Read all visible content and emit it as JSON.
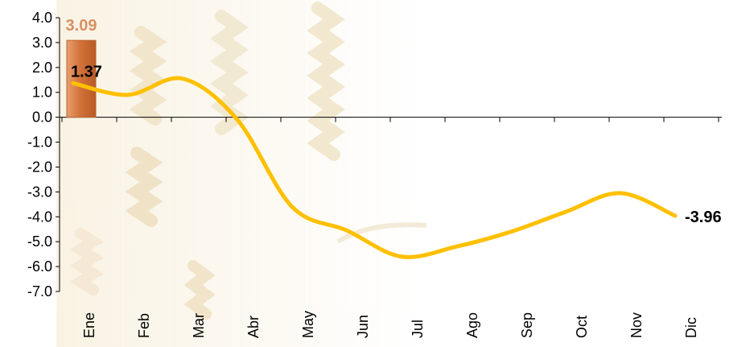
{
  "chart_data": {
    "type": "line",
    "categories": [
      "Ene",
      "Feb",
      "Mar",
      "Abr",
      "May",
      "Jun",
      "Jul",
      "Ago",
      "Sep",
      "Oct",
      "Nov",
      "Dic"
    ],
    "ylim": [
      -7.0,
      4.0
    ],
    "y_ticks": [
      "4.0",
      "3.0",
      "2.0",
      "1.0",
      "0.0",
      "-1.0",
      "-2.0",
      "-3.0",
      "-4.0",
      "-5.0",
      "-6.0",
      "-7.0"
    ],
    "grid": false,
    "legend": "none",
    "series": [
      {
        "kind": "bar",
        "color": "#D2733A",
        "values": [
          3.09,
          null,
          null,
          null,
          null,
          null,
          null,
          null,
          null,
          null,
          null,
          null
        ],
        "labels": {
          "0": "3.09"
        },
        "label_color": "#D99060"
      },
      {
        "kind": "line",
        "color": "#FFC000",
        "values": [
          1.37,
          0.9,
          1.55,
          -0.1,
          -3.6,
          -4.55,
          -5.6,
          -5.2,
          -4.6,
          -3.8,
          -3.05,
          -3.96
        ],
        "labels": {
          "0": "1.37",
          "11": "-3.96"
        },
        "label_color": "#000000"
      }
    ]
  }
}
